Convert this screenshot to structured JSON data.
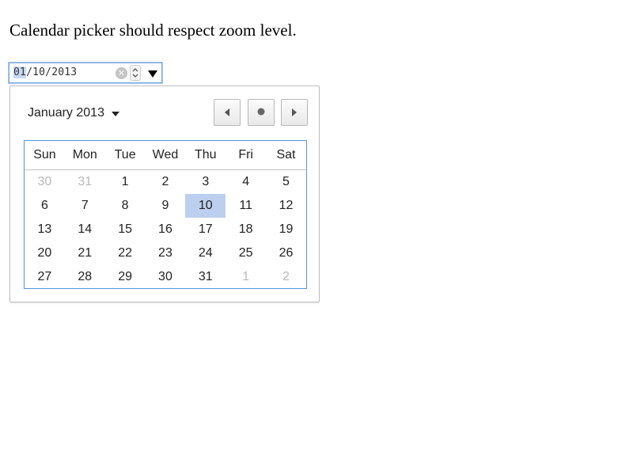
{
  "page": {
    "title": "Calendar picker should respect zoom level."
  },
  "date_input": {
    "month": "01",
    "sep1": "/",
    "day": "10",
    "sep2": "/",
    "year": "2013",
    "clear_icon": "clear-icon",
    "spin_icon": "spin-up-down-icon",
    "dropdown_icon": "dropdown-triangle-icon"
  },
  "picker": {
    "month_label": "January 2013",
    "month_caret_icon": "caret-down-icon",
    "prev_icon": "triangle-left-icon",
    "today_icon": "dot-icon",
    "next_icon": "triangle-right-icon",
    "weekdays": [
      "Sun",
      "Mon",
      "Tue",
      "Wed",
      "Thu",
      "Fri",
      "Sat"
    ],
    "weeks": [
      [
        "30",
        "31",
        "1",
        "2",
        "3",
        "4",
        "5"
      ],
      [
        "6",
        "7",
        "8",
        "9",
        "10",
        "11",
        "12"
      ],
      [
        "13",
        "14",
        "15",
        "16",
        "17",
        "18",
        "19"
      ],
      [
        "20",
        "21",
        "22",
        "23",
        "24",
        "25",
        "26"
      ],
      [
        "27",
        "28",
        "29",
        "30",
        "31",
        "1",
        "2"
      ]
    ],
    "selected_day": "10"
  },
  "colors": {
    "selected_bg": "#bccfee",
    "focus_border": "#5b93dc",
    "other_month_text": "#b9b9b9"
  }
}
